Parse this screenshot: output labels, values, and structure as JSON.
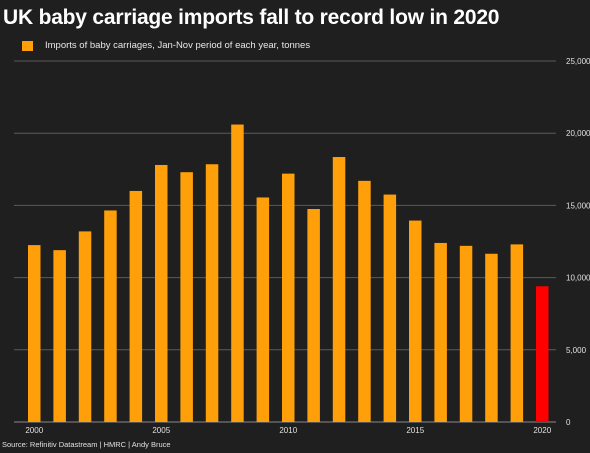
{
  "chart_data": {
    "type": "bar",
    "title": "UK baby carriage imports fall to record low in 2020",
    "series": [
      {
        "name": "Imports of baby carriages, Jan-Nov period of each year, tonnes",
        "color": "#ff9f0a"
      }
    ],
    "x": [
      2000,
      2001,
      2002,
      2003,
      2004,
      2005,
      2006,
      2007,
      2008,
      2009,
      2010,
      2011,
      2012,
      2013,
      2014,
      2015,
      2016,
      2017,
      2018,
      2019,
      2020
    ],
    "values": [
      12250,
      11900,
      13200,
      14650,
      16000,
      17800,
      17300,
      17850,
      20600,
      15550,
      17200,
      14750,
      18350,
      16700,
      15750,
      13950,
      12400,
      12200,
      11650,
      12300,
      9400
    ],
    "bar_colors": [
      "#ff9f0a",
      "#ff9f0a",
      "#ff9f0a",
      "#ff9f0a",
      "#ff9f0a",
      "#ff9f0a",
      "#ff9f0a",
      "#ff9f0a",
      "#ff9f0a",
      "#ff9f0a",
      "#ff9f0a",
      "#ff9f0a",
      "#ff9f0a",
      "#ff9f0a",
      "#ff9f0a",
      "#ff9f0a",
      "#ff9f0a",
      "#ff9f0a",
      "#ff9f0a",
      "#ff9f0a",
      "#ff0000"
    ],
    "x_ticks": [
      "2000",
      "2005",
      "2010",
      "2015",
      "2020"
    ],
    "x_tick_values": [
      2000,
      2005,
      2010,
      2015,
      2020
    ],
    "y_ticks": [
      "0",
      "5,000",
      "10,000",
      "15,000",
      "20,000",
      "25,000"
    ],
    "y_tick_values": [
      0,
      5000,
      10000,
      15000,
      20000,
      25000
    ],
    "ylim": [
      0,
      25000
    ],
    "xlabel": "",
    "ylabel": "",
    "grid": true,
    "legend_position": "top-left",
    "y_axis_side": "right"
  },
  "source": "Source: Refinitiv Datastream | HMRC | Andy Bruce",
  "colors": {
    "background": "#1f1f1f",
    "gridline": "#5a5a5a",
    "highlight": "#ff0000"
  }
}
